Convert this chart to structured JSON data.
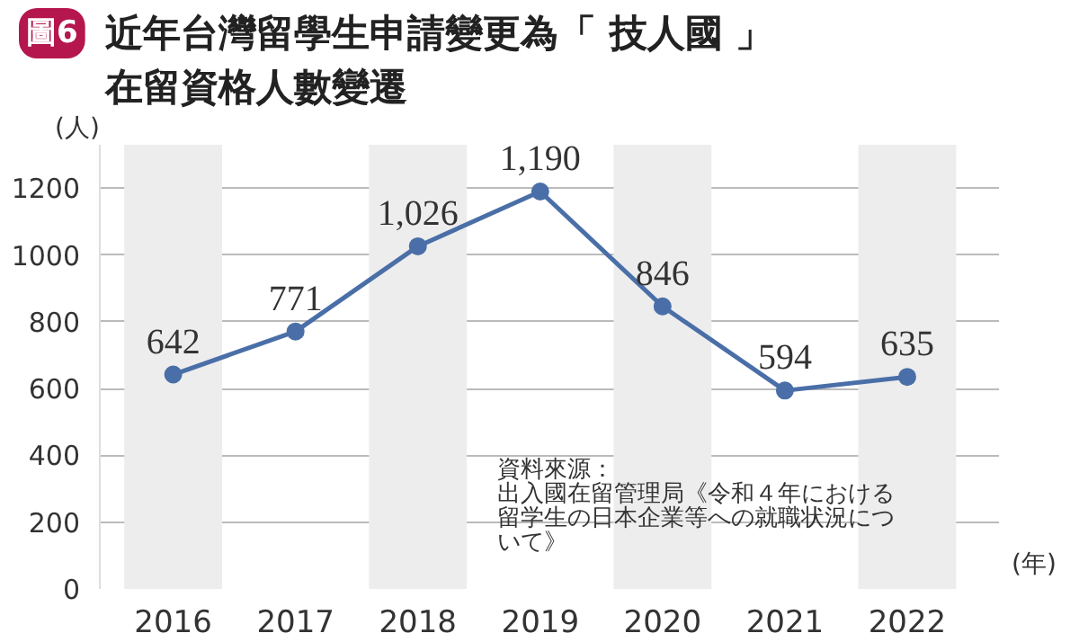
{
  "chart_data": {
    "type": "line",
    "title": "近年台灣留學生申請變更為「 技人國 」在留資格人數變遷",
    "ylabel": "(人)",
    "xlabel": "(年)",
    "annotations": [
      "圖6",
      "資料來源：",
      "出入國在留管理局《令和４年における留学生の日本企業等への就職状況について》"
    ],
    "x": [
      2016,
      2017,
      2018,
      2019,
      2020,
      2021,
      2022
    ],
    "xticks": [
      2016,
      2017,
      2018,
      2019,
      2020,
      2021,
      2022
    ],
    "xlim": [
      2015.4,
      2022.75
    ],
    "series": [
      {
        "color": "#4a6fa8",
        "values": [
          642,
          771,
          1026,
          1190,
          846,
          594,
          635
        ],
        "value_labels": [
          "642",
          "771",
          "1,026",
          "1,190",
          "846",
          "594",
          "635"
        ]
      }
    ],
    "ylim": [
      0,
      1330
    ],
    "yticks": [
      0,
      200,
      400,
      600,
      800,
      1000,
      1200
    ],
    "grid": "y",
    "marker": "circle",
    "data_labels": true,
    "bands": [
      {
        "axis": "x",
        "from": 2015.6,
        "to": 2016.4,
        "color": "#ededed"
      },
      {
        "axis": "x",
        "from": 2017.6,
        "to": 2018.4,
        "color": "#ededed"
      },
      {
        "axis": "x",
        "from": 2019.6,
        "to": 2020.4,
        "color": "#ededed"
      },
      {
        "axis": "x",
        "from": 2021.6,
        "to": 2022.4,
        "color": "#ededed"
      }
    ]
  }
}
